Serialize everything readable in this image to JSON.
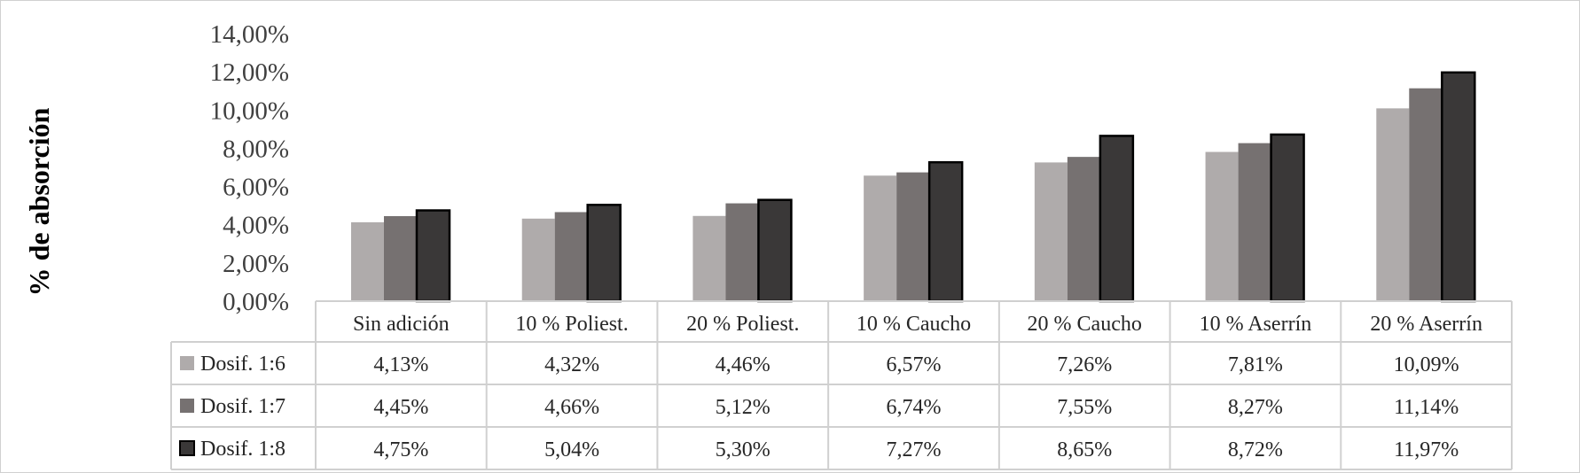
{
  "chart_data": {
    "type": "bar",
    "ylabel": "% de absorción",
    "ylim": [
      0,
      14
    ],
    "ytick_labels": [
      "0,00%",
      "2,00%",
      "4,00%",
      "6,00%",
      "8,00%",
      "10,00%",
      "12,00%",
      "14,00%"
    ],
    "categories": [
      "Sin adición",
      "10 % Poliest.",
      "20 % Poliest.",
      "10 % Caucho",
      "20 % Caucho",
      "10 % Aserrín",
      "20 % Aserrín"
    ],
    "series": [
      {
        "name": "Dosif. 1:6",
        "color": "#afabab",
        "outlined": false,
        "values": [
          4.13,
          4.32,
          4.46,
          6.57,
          7.26,
          7.81,
          10.09
        ],
        "labels": [
          "4,13%",
          "4,32%",
          "4,46%",
          "6,57%",
          "7,26%",
          "7,81%",
          "10,09%"
        ]
      },
      {
        "name": "Dosif. 1:7",
        "color": "#767171",
        "outlined": false,
        "values": [
          4.45,
          4.66,
          5.12,
          6.74,
          7.55,
          8.27,
          11.14
        ],
        "labels": [
          "4,45%",
          "4,66%",
          "5,12%",
          "6,74%",
          "7,55%",
          "8,27%",
          "11,14%"
        ]
      },
      {
        "name": "Dosif. 1:8",
        "color": "#3a3838",
        "outlined": true,
        "values": [
          4.75,
          5.04,
          5.3,
          7.27,
          8.65,
          8.72,
          11.97
        ],
        "labels": [
          "4,75%",
          "5,04%",
          "5,30%",
          "7,27%",
          "8,65%",
          "8,72%",
          "11,97%"
        ]
      }
    ],
    "data_table": true,
    "legend": "in-table",
    "grid": false
  }
}
